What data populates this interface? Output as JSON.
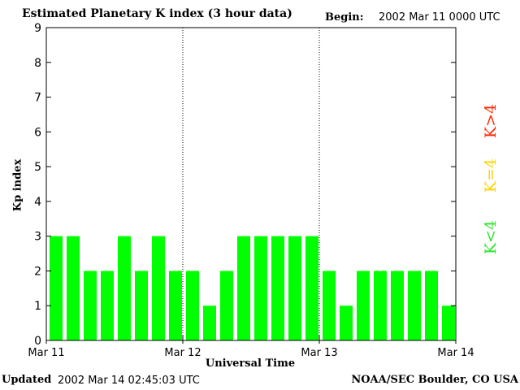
{
  "header": {
    "title": "Estimated Planetary K index (3 hour data)",
    "begin_label": "Begin:",
    "begin_value": "2002 Mar 11 0000 UTC"
  },
  "footer": {
    "updated_label": "Updated",
    "updated_value": "2002 Mar 14 02:45:03 UTC",
    "source": "NOAA/SEC Boulder, CO USA"
  },
  "legend": {
    "k_greater": "K>4",
    "k_equal": "K=4",
    "k_less": "K<4"
  },
  "colors": {
    "k_greater": "#ff2a00",
    "k_equal": "#ffd400",
    "k_less": "#2ee62e",
    "bar": "#00ff00"
  },
  "chart_data": {
    "type": "bar",
    "title": "Estimated Planetary K index (3 hour data)",
    "xlabel": "Universal Time",
    "ylabel": "Kp index",
    "ylim": [
      0,
      9
    ],
    "yticks": [
      "0",
      "1",
      "2",
      "3",
      "4",
      "5",
      "6",
      "7",
      "8",
      "9"
    ],
    "xticks": [
      "Mar 11",
      "Mar 12",
      "Mar 13",
      "Mar 14"
    ],
    "day_dividers": [
      "Mar 12",
      "Mar 13"
    ],
    "values": [
      3,
      3,
      2,
      2,
      3,
      2,
      3,
      2,
      2,
      1,
      2,
      3,
      3,
      3,
      3,
      3,
      2,
      1,
      2,
      2,
      2,
      2,
      2,
      1
    ]
  }
}
